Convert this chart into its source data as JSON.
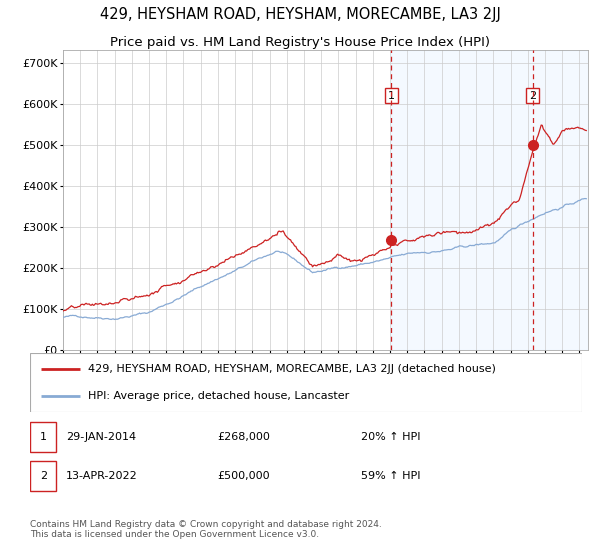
{
  "title": "429, HEYSHAM ROAD, HEYSHAM, MORECAMBE, LA3 2JJ",
  "subtitle": "Price paid vs. HM Land Registry's House Price Index (HPI)",
  "title_fontsize": 10.5,
  "subtitle_fontsize": 9.5,
  "ylabel_ticks": [
    "£0",
    "£100K",
    "£200K",
    "£300K",
    "£400K",
    "£500K",
    "£600K",
    "£700K"
  ],
  "ytick_vals": [
    0,
    100000,
    200000,
    300000,
    400000,
    500000,
    600000,
    700000
  ],
  "ylim": [
    0,
    730000
  ],
  "xlim_start": 1995.0,
  "xlim_end": 2025.5,
  "sale1_date": 2014.08,
  "sale1_price": 268000,
  "sale1_label": "1",
  "sale2_date": 2022.29,
  "sale2_price": 500000,
  "sale2_label": "2",
  "red_line_color": "#cc2222",
  "blue_line_color": "#88aad4",
  "bg_shade_color": "#ddeeff",
  "grid_color": "#cccccc",
  "legend1_text": "429, HEYSHAM ROAD, HEYSHAM, MORECAMBE, LA3 2JJ (detached house)",
  "legend2_text": "HPI: Average price, detached house, Lancaster",
  "footer": "Contains HM Land Registry data © Crown copyright and database right 2024.\nThis data is licensed under the Open Government Licence v3.0.",
  "marker_color": "#cc2222",
  "marker_size": 7,
  "dashed_line_color": "#cc2222",
  "ann1_date": "29-JAN-2014",
  "ann1_price": "£268,000",
  "ann1_pct": "20% ↑ HPI",
  "ann2_date": "13-APR-2022",
  "ann2_price": "£500,000",
  "ann2_pct": "59% ↑ HPI"
}
